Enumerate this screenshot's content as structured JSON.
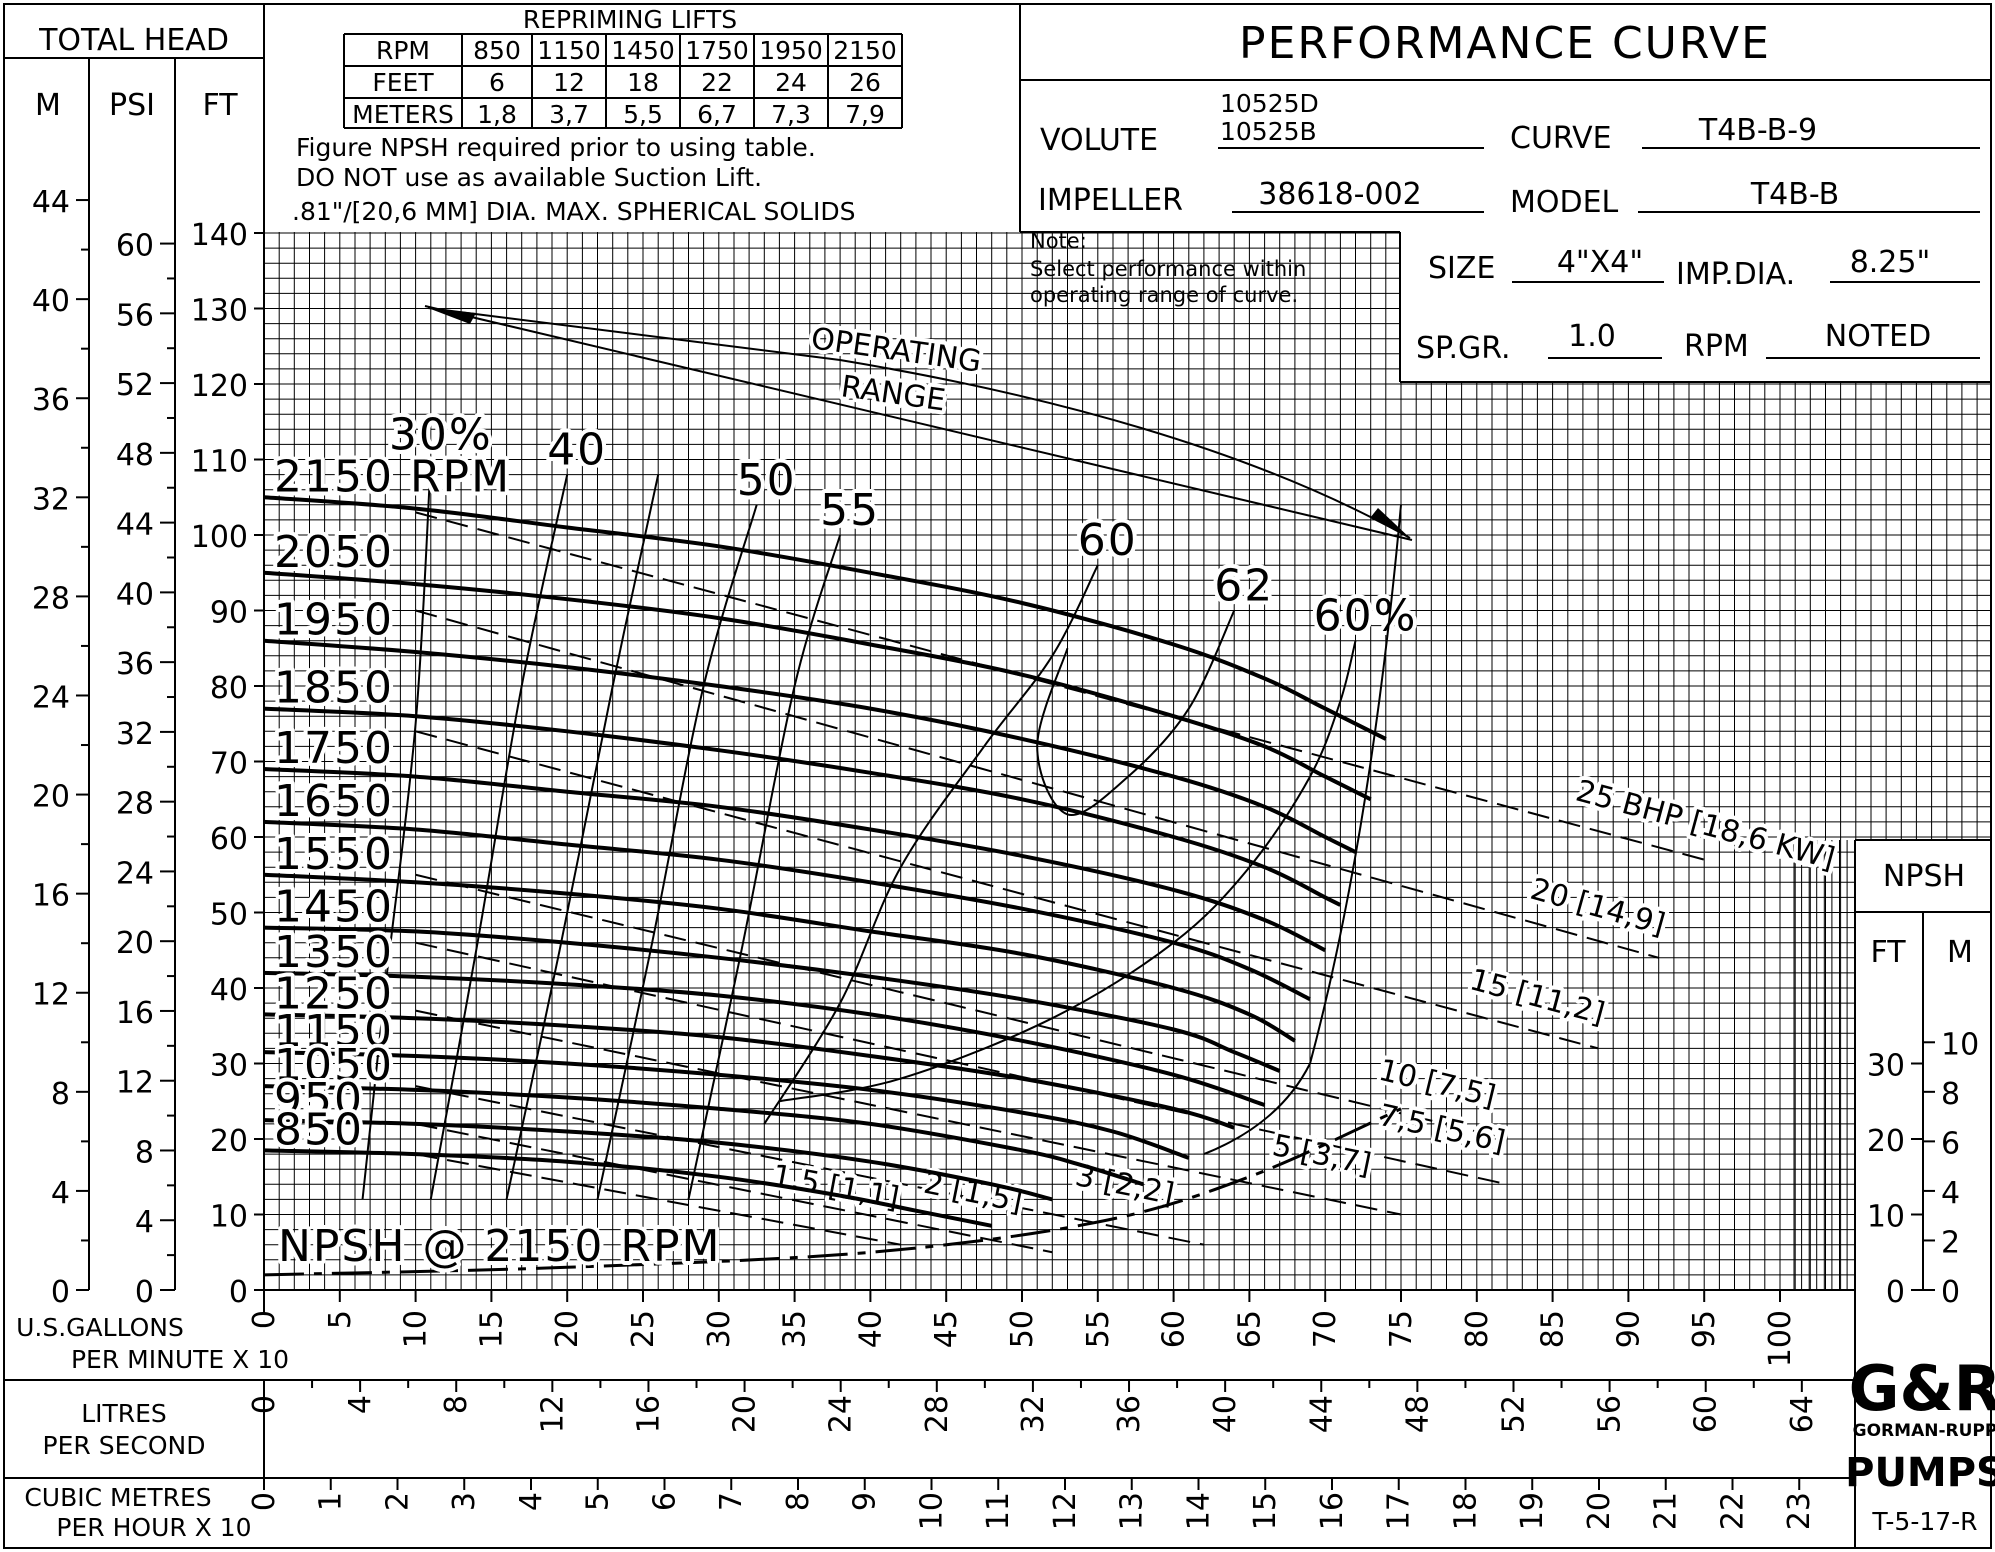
{
  "header": {
    "total_head": "TOTAL HEAD",
    "unit_m": "M",
    "unit_psi": "PSI",
    "unit_ft": "FT",
    "repriming_title": "REPRIMING LIFTS",
    "repriming_table": {
      "rpm_label": "RPM",
      "feet_label": "FEET",
      "meters_label": "METERS",
      "rpm": [
        "850",
        "1150",
        "1450",
        "1750",
        "1950",
        "2150"
      ],
      "feet": [
        "6",
        "12",
        "18",
        "22",
        "24",
        "26"
      ],
      "meters": [
        "1,8",
        "3,7",
        "5,5",
        "6,7",
        "7,3",
        "7,9"
      ]
    },
    "note1": "Figure NPSH required prior to using table.",
    "note2": "DO NOT use as available Suction Lift.",
    "note3": ".81\"/[20,6 MM] DIA. MAX. SPHERICAL SOLIDS",
    "title": "PERFORMANCE CURVE",
    "volute_label": "VOLUTE",
    "volute_value1": "10525D",
    "volute_value2": "10525B",
    "curve_label": "CURVE",
    "curve_value": "T4B-B-9",
    "impeller_label": "IMPELLER",
    "impeller_value": "38618-002",
    "model_label": "MODEL",
    "model_value": "T4B-B",
    "note_title": "Note:",
    "note_line1": "Select performance within",
    "note_line2": "operating range of curve.",
    "size_label": "SIZE",
    "size_value": "4\"X4\"",
    "impdia_label": "IMP.DIA.",
    "impdia_value": "8.25\"",
    "spgr_label": "SP.GR.",
    "spgr_value": "1.0",
    "rpm_label": "RPM",
    "rpm_value": "NOTED"
  },
  "footer": {
    "gpm_label_1": "U.S.GALLONS",
    "gpm_label_2": "PER MINUTE X 10",
    "lps_label_1": "LITRES",
    "lps_label_2": "PER SECOND",
    "cmh_label_1": "CUBIC METRES",
    "cmh_label_2": "PER HOUR X 10",
    "logo_text": "G&R",
    "logo_sub": "GORMAN-RUPP",
    "logo_pumps": "PUMPS",
    "drawing_number": "T-5-17-R"
  },
  "chart_data": {
    "type": "line",
    "title": "PERFORMANCE CURVE",
    "xlabel": "U.S.GALLONS PER MINUTE X 10",
    "ylabel": "TOTAL HEAD",
    "xlim": [
      0,
      100
    ],
    "ylim": [
      0,
      140
    ],
    "x_ticks": [
      0,
      5,
      10,
      15,
      20,
      25,
      30,
      35,
      40,
      45,
      50,
      55,
      60,
      65,
      70,
      75,
      80,
      85,
      90,
      95,
      100
    ],
    "y_ticks_ft": [
      0,
      10,
      20,
      30,
      40,
      50,
      60,
      70,
      80,
      90,
      100,
      110,
      120,
      130,
      140
    ],
    "y_ticks_psi": [
      0,
      4,
      8,
      12,
      16,
      20,
      24,
      28,
      32,
      36,
      40,
      44,
      48,
      52,
      56,
      60
    ],
    "y_ticks_m": [
      0,
      4,
      8,
      12,
      16,
      20,
      24,
      28,
      32,
      36,
      40,
      44
    ],
    "lps_ticks": [
      0,
      4,
      8,
      12,
      16,
      20,
      24,
      28,
      32,
      36,
      40,
      44,
      48,
      52,
      56,
      60,
      64
    ],
    "cmh_ticks": [
      0,
      1,
      2,
      3,
      4,
      5,
      6,
      7,
      8,
      9,
      10,
      11,
      12,
      13,
      14,
      15,
      16,
      17,
      18,
      19,
      20,
      21,
      22,
      23
    ],
    "npsh_label": "NPSH",
    "npsh_ft_label": "FT",
    "npsh_m_label": "M",
    "npsh_ft_ticks": [
      0,
      10,
      20,
      30
    ],
    "npsh_m_ticks": [
      0,
      2,
      4,
      6,
      8,
      10
    ],
    "grid": true,
    "rpm_curves": [
      {
        "label": "2150 RPM",
        "x": [
          0,
          10,
          20,
          30,
          40,
          50,
          60,
          66,
          70,
          74
        ],
        "y": [
          105,
          103.5,
          101,
          98.5,
          95,
          91,
          85.5,
          81,
          77,
          73
        ]
      },
      {
        "label": "2050",
        "x": [
          0,
          10,
          20,
          30,
          40,
          50,
          60,
          66,
          70,
          73
        ],
        "y": [
          95,
          93.5,
          91.5,
          89,
          85.5,
          81.5,
          76,
          72,
          68,
          65
        ]
      },
      {
        "label": "1950",
        "x": [
          0,
          10,
          20,
          30,
          40,
          50,
          60,
          66,
          70,
          72
        ],
        "y": [
          86,
          84.5,
          82.5,
          80,
          77,
          73,
          68,
          64,
          60,
          58
        ]
      },
      {
        "label": "1850",
        "x": [
          0,
          10,
          20,
          30,
          40,
          50,
          60,
          66,
          70,
          71
        ],
        "y": [
          77,
          76,
          74,
          71.5,
          68.5,
          65,
          60,
          56,
          52,
          51
        ]
      },
      {
        "label": "1750",
        "x": [
          0,
          10,
          20,
          30,
          40,
          50,
          60,
          66,
          70
        ],
        "y": [
          69,
          68,
          66,
          64,
          61,
          57.5,
          53,
          49,
          45
        ]
      },
      {
        "label": "1650",
        "x": [
          0,
          10,
          20,
          30,
          40,
          50,
          60,
          65,
          69
        ],
        "y": [
          62,
          61,
          59,
          57,
          54,
          50.5,
          46,
          42.5,
          38.5
        ]
      },
      {
        "label": "1550",
        "x": [
          0,
          10,
          20,
          30,
          40,
          50,
          60,
          65,
          68
        ],
        "y": [
          55,
          54,
          52.5,
          50.5,
          47.5,
          44.5,
          40,
          36.5,
          33
        ]
      },
      {
        "label": "1450",
        "x": [
          0,
          10,
          20,
          30,
          40,
          50,
          60,
          64,
          67
        ],
        "y": [
          48,
          47.5,
          46,
          44,
          41.5,
          38.5,
          34.5,
          31.5,
          29
        ]
      },
      {
        "label": "1350",
        "x": [
          0,
          10,
          20,
          30,
          40,
          50,
          60,
          66
        ],
        "y": [
          42,
          41.5,
          40.5,
          39,
          36.5,
          33,
          28.5,
          24.5
        ]
      },
      {
        "label": "1250",
        "x": [
          0,
          10,
          20,
          30,
          40,
          50,
          60,
          64
        ],
        "y": [
          36.5,
          36,
          35,
          33.5,
          31,
          28,
          24,
          21.5
        ]
      },
      {
        "label": "1150",
        "x": [
          0,
          10,
          20,
          30,
          40,
          50,
          56,
          61
        ],
        "y": [
          31.5,
          31,
          30,
          28.5,
          26.5,
          23.5,
          21,
          17.5
        ]
      },
      {
        "label": "1050",
        "x": [
          0,
          10,
          20,
          30,
          40,
          50,
          54,
          58
        ],
        "y": [
          27,
          26.5,
          25.5,
          24,
          22,
          18.5,
          16.5,
          14
        ]
      },
      {
        "label": "950",
        "x": [
          0,
          10,
          20,
          30,
          40,
          48,
          52
        ],
        "y": [
          22.5,
          22,
          21,
          19.5,
          17,
          14,
          12
        ]
      },
      {
        "label": "850",
        "x": [
          0,
          10,
          20,
          30,
          38,
          43,
          48
        ],
        "y": [
          18.5,
          18,
          17,
          15,
          12.5,
          10.5,
          8.5
        ]
      }
    ],
    "efficiency_curves": [
      {
        "label": "30%",
        "x": [
          6.5,
          8,
          10,
          11
        ],
        "y": [
          12,
          40,
          75,
          110
        ]
      },
      {
        "label": "40",
        "x": [
          11,
          14,
          17,
          20
        ],
        "y": [
          12,
          45,
          80,
          108
        ]
      },
      {
        "label": "",
        "x": [
          16,
          19.5,
          23,
          26
        ],
        "y": [
          12,
          45,
          80,
          108
        ]
      },
      {
        "label": "50",
        "x": [
          22,
          25.5,
          29,
          32.5
        ],
        "y": [
          12,
          45,
          80,
          104
        ]
      },
      {
        "label": "55",
        "x": [
          28,
          31.5,
          35,
          38
        ],
        "y": [
          12,
          45,
          80,
          100
        ]
      },
      {
        "label": "60",
        "x": [
          33,
          38,
          42,
          47.5,
          52,
          55
        ],
        "y": [
          22,
          38,
          56,
          72,
          84,
          96
        ]
      },
      {
        "label": "62",
        "x": [
          53,
          51,
          53,
          57,
          61,
          64
        ],
        "y": [
          85,
          72,
          63,
          68,
          77,
          90
        ]
      },
      {
        "label": "60%",
        "x": [
          34,
          42,
          52,
          60,
          65,
          69,
          71,
          72
        ],
        "y": [
          25,
          28,
          36,
          46,
          56,
          68,
          78,
          86
        ]
      }
    ],
    "bhp_lines": [
      {
        "label": "25 BHP [18,6 KW]",
        "x": [
          10,
          95
        ],
        "y": [
          103,
          57
        ]
      },
      {
        "label": "20 [14,9]",
        "x": [
          10,
          92
        ],
        "y": [
          90,
          44
        ]
      },
      {
        "label": "15 [11,2]",
        "x": [
          10,
          88
        ],
        "y": [
          74,
          32
        ]
      },
      {
        "label": "10 [7,5]",
        "x": [
          10,
          82
        ],
        "y": [
          55,
          20
        ]
      },
      {
        "label": "7,5 [5,6]",
        "x": [
          10,
          82
        ],
        "y": [
          46,
          14
        ]
      },
      {
        "label": "5 [3,7]",
        "x": [
          10,
          75
        ],
        "y": [
          37,
          10
        ]
      },
      {
        "label": "3 [2,2]",
        "x": [
          10,
          62
        ],
        "y": [
          27,
          6
        ]
      },
      {
        "label": "2 [1,5]",
        "x": [
          10,
          52
        ],
        "y": [
          22,
          5
        ]
      },
      {
        "label": "1.5 [1,1]",
        "x": [
          10,
          42
        ],
        "y": [
          18,
          6
        ]
      }
    ],
    "npsh_curve": {
      "label": "NPSH @ 2150 RPM",
      "x": [
        0,
        20,
        40,
        55,
        65,
        75
      ],
      "y": [
        2,
        3,
        5,
        9,
        15,
        24
      ]
    },
    "operating_range": {
      "label_1": "OPERATING",
      "label_2": "RANGE"
    }
  }
}
